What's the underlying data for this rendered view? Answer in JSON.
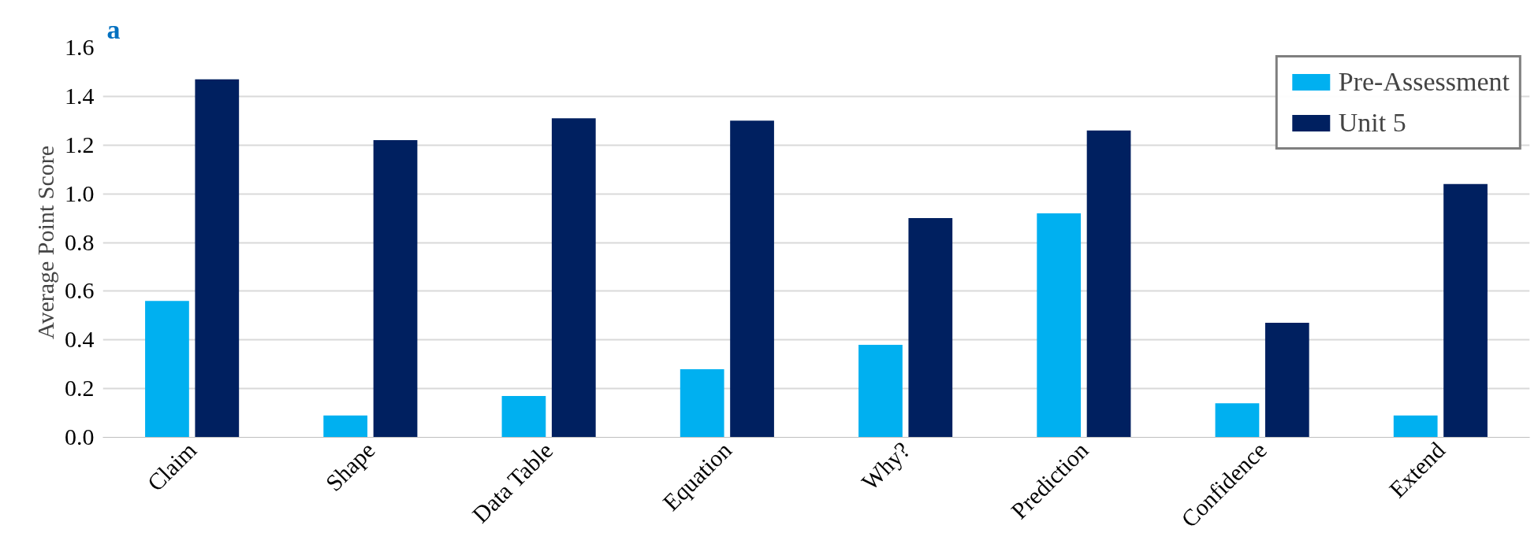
{
  "chart_data": {
    "type": "bar",
    "ylabel": "Average Point Score",
    "categories": [
      "Claim",
      "Shape",
      "Data Table",
      "Equation",
      "Why?",
      "Prediction",
      "Confidence",
      "Extend"
    ],
    "series": [
      {
        "name": "Pre-Assessment",
        "color": "#00b0f0",
        "values": [
          0.56,
          0.09,
          0.17,
          0.28,
          0.38,
          0.92,
          0.14,
          0.09
        ]
      },
      {
        "name": "Unit 5",
        "color": "#002060",
        "values": [
          1.47,
          1.22,
          1.31,
          1.3,
          0.9,
          1.26,
          0.47,
          1.04
        ]
      }
    ],
    "ylim": [
      0,
      1.6
    ],
    "yticks": [
      {
        "value": 0,
        "label": "0.0"
      },
      {
        "value": 0.2,
        "label": "0.2"
      },
      {
        "value": 0.4,
        "label": "0.4"
      },
      {
        "value": 0.6,
        "label": "0.6"
      },
      {
        "value": 0.8,
        "label": "0.8"
      },
      {
        "value": 1.0,
        "label": "1.0"
      },
      {
        "value": 1.2,
        "label": "1.2"
      },
      {
        "value": 1.4,
        "label": "1.4"
      },
      {
        "value": 1.6,
        "label": "1.6"
      }
    ],
    "grid": "y",
    "legend": "top right",
    "annotations": [
      "a"
    ]
  }
}
